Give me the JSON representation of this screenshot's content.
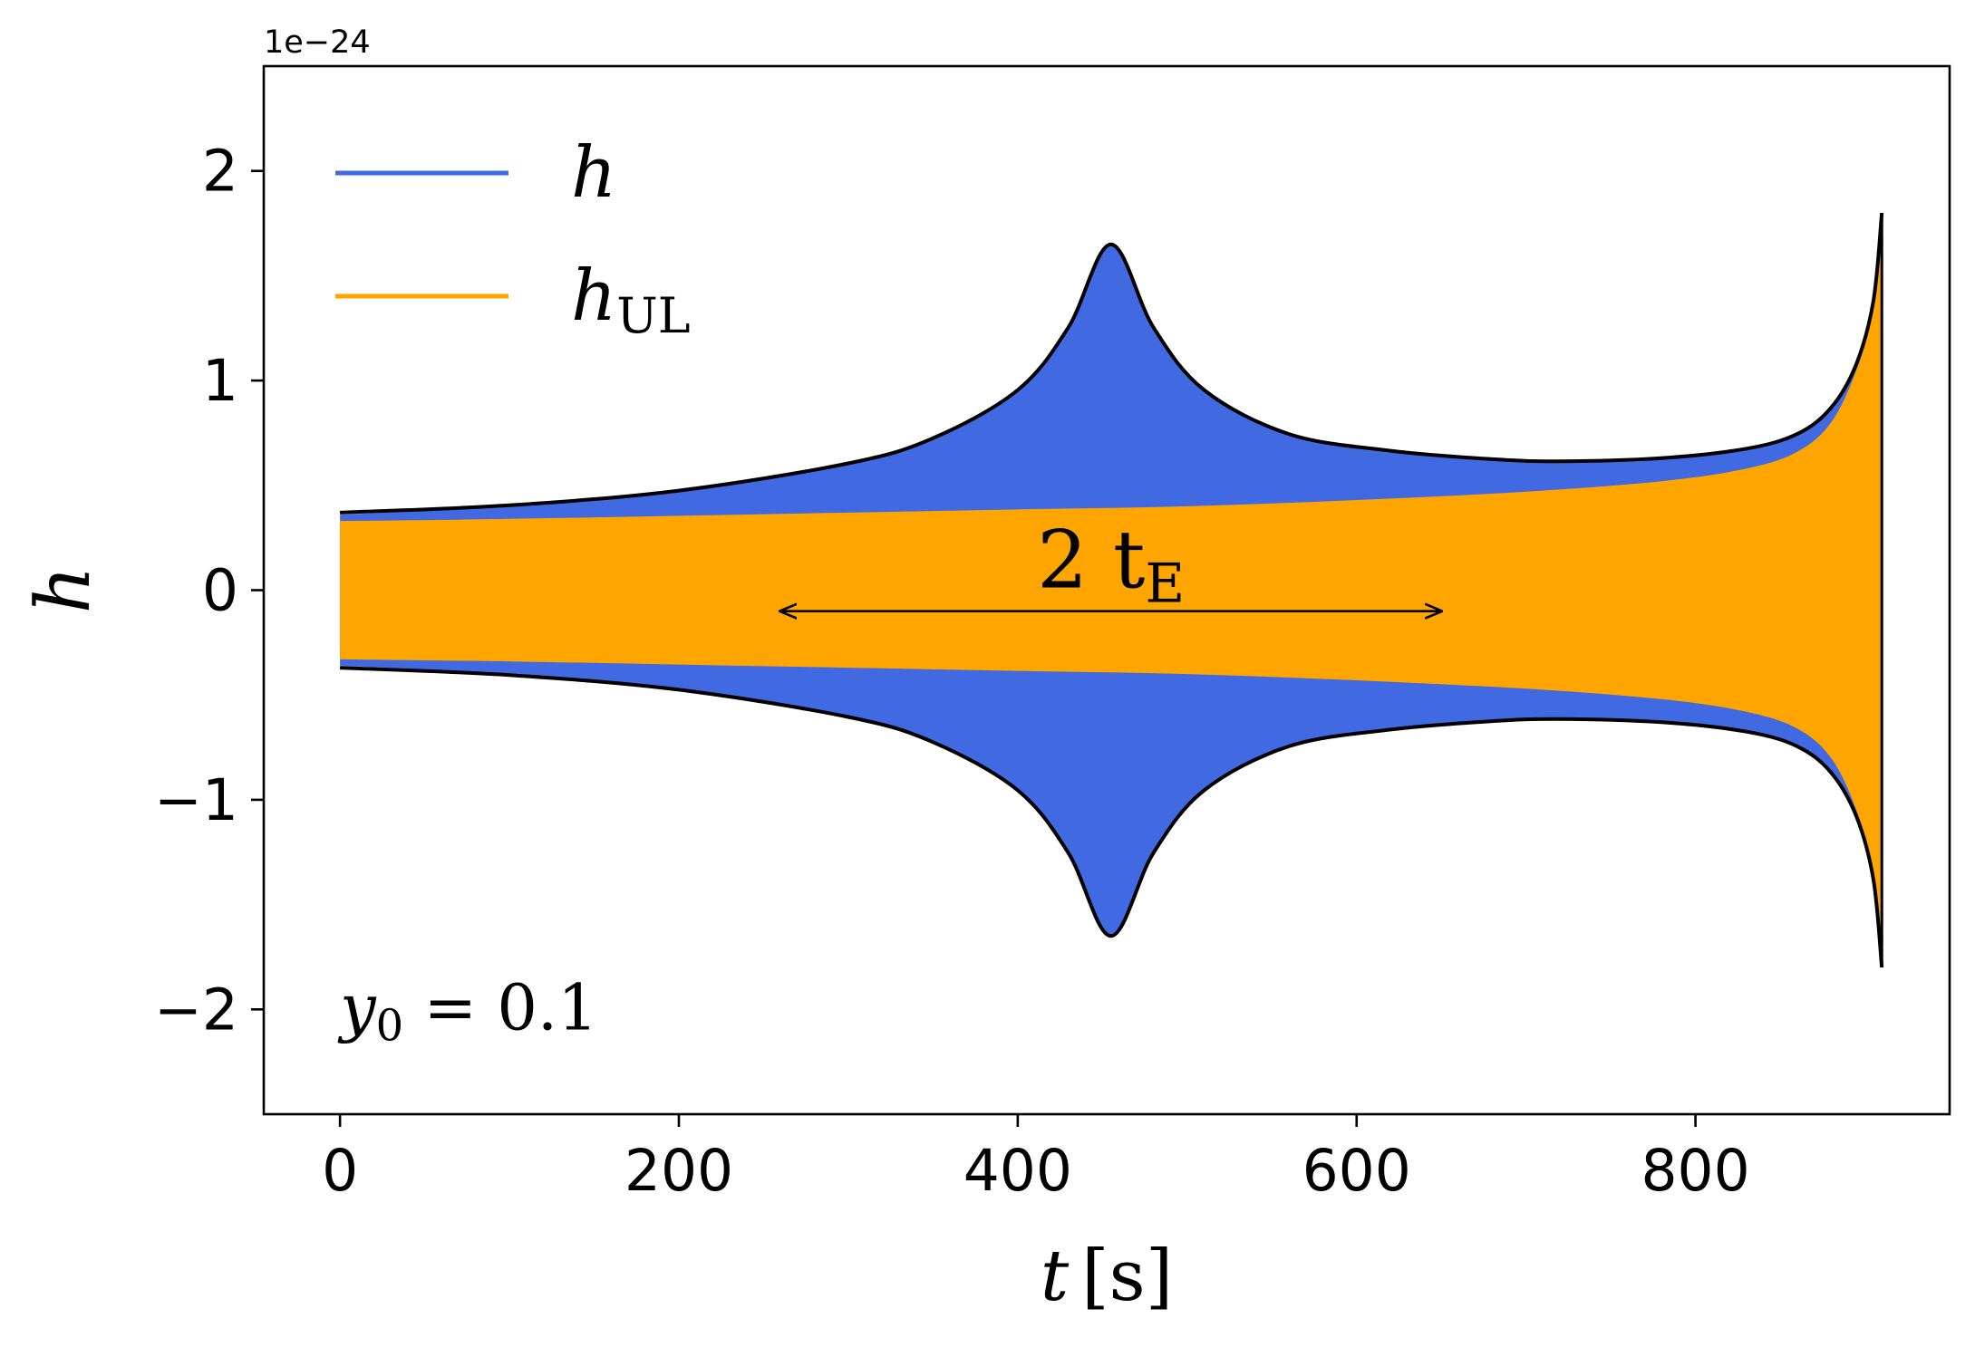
{
  "chart_data": {
    "type": "area",
    "offset_text": "1e−24",
    "xlabel": {
      "var": "t",
      "unit": "[s]"
    },
    "ylabel": "h",
    "xlim": [
      -45,
      950
    ],
    "ylim": [
      -2.5,
      2.5
    ],
    "x_ticks": [
      0,
      200,
      400,
      600,
      800
    ],
    "x_tick_labels": [
      "0",
      "200",
      "400",
      "600",
      "800"
    ],
    "y_ticks": [
      -2,
      -1,
      0,
      1,
      2
    ],
    "y_tick_labels": [
      "−2",
      "−1",
      "0",
      "1",
      "2"
    ],
    "grid": false,
    "legend": {
      "placement": "top-left",
      "entries": [
        {
          "label_main": "h",
          "label_sub": "",
          "color": "#4169e1"
        },
        {
          "label_main": "h",
          "label_sub": "UL",
          "color": "#ffa500"
        }
      ]
    },
    "series": [
      {
        "name": "h",
        "color": "#4169e1",
        "kind": "envelope-fill",
        "x": [
          0,
          100,
          200,
          300,
          350,
          400,
          430,
          455,
          480,
          510,
          560,
          620,
          680,
          720,
          780,
          830,
          860,
          880,
          895,
          905,
          910
        ],
        "upper": [
          0.36,
          0.4,
          0.47,
          0.6,
          0.72,
          0.95,
          1.25,
          1.65,
          1.25,
          0.95,
          0.74,
          0.66,
          0.62,
          0.61,
          0.63,
          0.68,
          0.75,
          0.88,
          1.1,
          1.4,
          1.8
        ]
      },
      {
        "name": "h_UL",
        "color": "#ffa500",
        "kind": "envelope-fill",
        "x": [
          0,
          100,
          200,
          300,
          400,
          500,
          600,
          700,
          780,
          830,
          860,
          880,
          895,
          905,
          910
        ],
        "upper": [
          0.33,
          0.34,
          0.355,
          0.37,
          0.385,
          0.4,
          0.43,
          0.47,
          0.52,
          0.58,
          0.66,
          0.8,
          1.05,
          1.35,
          1.75
        ]
      }
    ],
    "envelope": {
      "color": "#000000",
      "x": [
        0,
        100,
        200,
        300,
        350,
        400,
        430,
        455,
        480,
        510,
        560,
        620,
        680,
        720,
        780,
        830,
        860,
        880,
        895,
        905,
        910
      ],
      "upper": [
        0.37,
        0.405,
        0.475,
        0.605,
        0.725,
        0.955,
        1.255,
        1.65,
        1.255,
        0.955,
        0.745,
        0.665,
        0.625,
        0.615,
        0.63,
        0.675,
        0.745,
        0.87,
        1.08,
        1.38,
        1.8
      ]
    },
    "annotations": [
      {
        "kind": "double-arrow",
        "x_start": 260,
        "x_end": 650,
        "y": -0.1,
        "label_main": "2 t",
        "label_sub": "E"
      },
      {
        "kind": "text",
        "label_main": "y",
        "label_sub": "0",
        "label_rest": " = 0.1",
        "x": 0,
        "y": -2.0
      }
    ]
  }
}
